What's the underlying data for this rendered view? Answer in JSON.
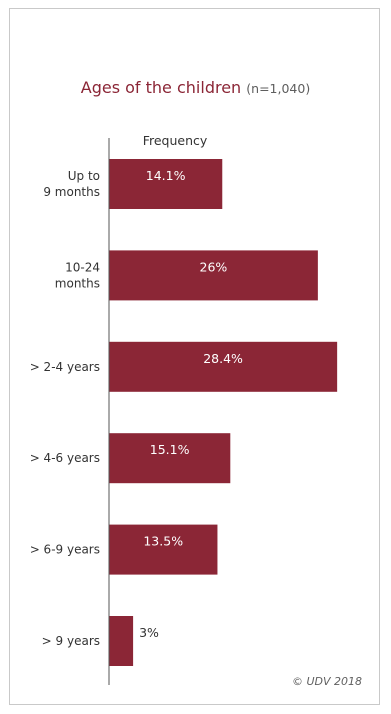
{
  "chart_data": {
    "type": "bar",
    "orientation": "horizontal",
    "title": "Ages of the children",
    "subtitle": "(n=1,040)",
    "xlabel": "Frequency",
    "ylabel": "",
    "categories": [
      [
        "Up to",
        "9 months"
      ],
      [
        "10-24",
        "months"
      ],
      [
        "> 2-4 years"
      ],
      [
        "> 4-6 years"
      ],
      [
        "> 6-9 years"
      ],
      [
        "> 9 years"
      ]
    ],
    "values": [
      14.1,
      26,
      28.4,
      15.1,
      13.5,
      3
    ],
    "value_labels": [
      "14.1%",
      "26%",
      "28.4%",
      "15.1%",
      "13.5%",
      "3%"
    ],
    "xlim": [
      0,
      30
    ],
    "grid": false,
    "legend": "none",
    "colors": {
      "bar": "#8b2636",
      "title": "#8b2636",
      "label_inside": "#ffffff",
      "label_outside": "#333333",
      "axis": "#555555"
    }
  },
  "credit": "© UDV 2018"
}
